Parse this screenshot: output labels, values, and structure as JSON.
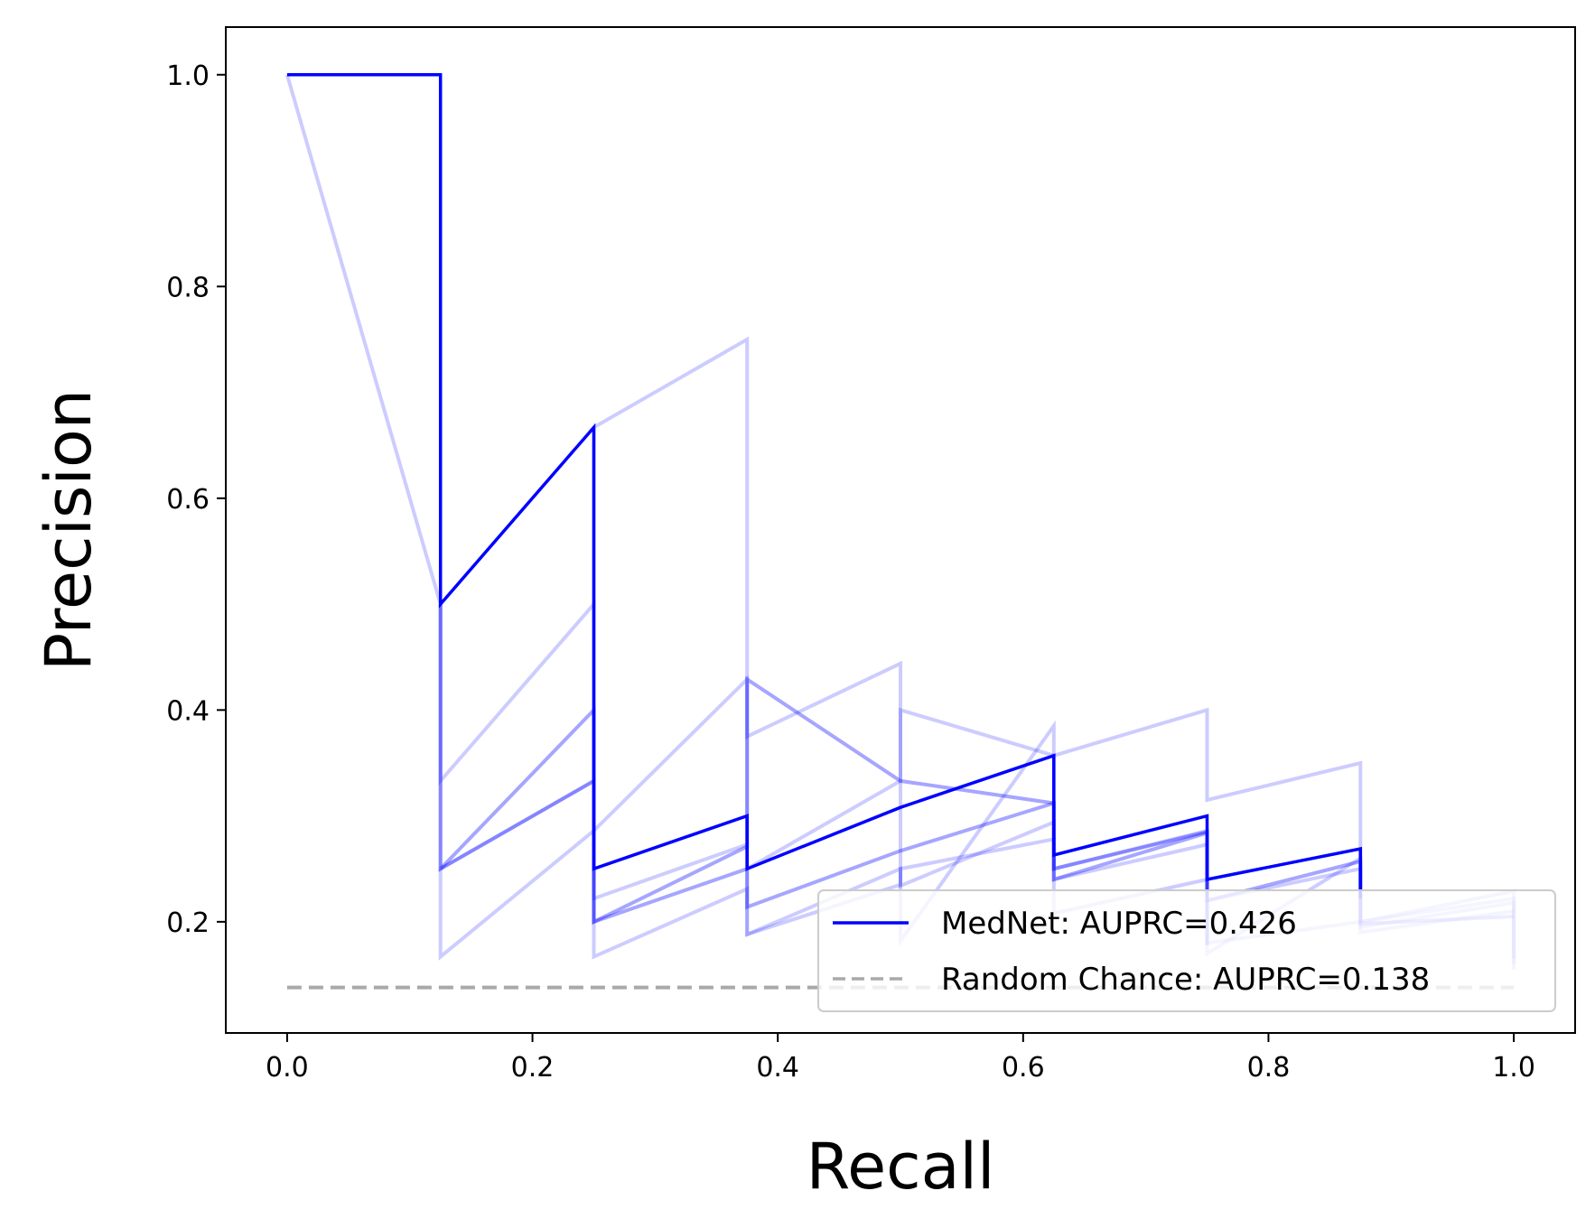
{
  "chart_data": {
    "type": "line",
    "title": "",
    "xlabel": "Recall",
    "ylabel": "Precision",
    "xlim": [
      -0.05,
      1.05
    ],
    "ylim": [
      0.095,
      1.045
    ],
    "xticks": [
      "0.0",
      "0.2",
      "0.4",
      "0.6",
      "0.8",
      "1.0"
    ],
    "yticks": [
      "0.2",
      "0.4",
      "0.6",
      "0.8",
      "1.0"
    ],
    "grid": false,
    "legend_position": "lower-right",
    "colors": {
      "main": "#0000ff",
      "faint": "#0000ff",
      "random": "#a9a9a9"
    },
    "series": [
      {
        "name": "MedNet: AUPRC=0.426",
        "style": "main",
        "x": [
          0.0,
          0.125,
          0.125,
          0.25,
          0.25,
          0.375,
          0.375,
          0.5,
          0.625,
          0.625,
          0.75,
          0.75,
          0.875,
          0.875
        ],
        "y": [
          1.0,
          1.0,
          0.5,
          0.667,
          0.25,
          0.3,
          0.25,
          0.308,
          0.357,
          0.263,
          0.3,
          0.24,
          0.269,
          0.222
        ]
      },
      {
        "name": "Random Chance: AUPRC=0.138",
        "style": "random",
        "x": [
          0.0,
          1.0
        ],
        "y": [
          0.138,
          0.138
        ]
      }
    ],
    "background_curves": [
      {
        "opacity": 0.2,
        "x": [
          0.0,
          0.125,
          0.125,
          0.25,
          0.25,
          0.375,
          0.375,
          0.5,
          0.5,
          0.625,
          0.625,
          0.75,
          0.75,
          0.875,
          0.875,
          1.0,
          1.0
        ],
        "y": [
          1.0,
          0.5,
          0.333,
          0.5,
          0.286,
          0.429,
          0.375,
          0.444,
          0.182,
          0.385,
          0.357,
          0.4,
          0.315,
          0.35,
          0.2,
          0.229,
          0.165
        ]
      },
      {
        "opacity": 0.2,
        "x": [
          0.125,
          0.125,
          0.25,
          0.25,
          0.375,
          0.375,
          0.5,
          0.5,
          0.625,
          0.625,
          0.75,
          0.75,
          0.875,
          0.875,
          1.0,
          1.0
        ],
        "y": [
          0.5,
          0.25,
          0.333,
          0.667,
          0.75,
          0.25,
          0.333,
          0.4,
          0.357,
          0.25,
          0.286,
          0.22,
          0.25,
          0.2,
          0.222,
          0.16
        ]
      },
      {
        "opacity": 0.2,
        "x": [
          0.125,
          0.125,
          0.25,
          0.25,
          0.375,
          0.375,
          0.5,
          0.5,
          0.625,
          0.625,
          0.75,
          0.75,
          0.875,
          0.875,
          1.0,
          1.0
        ],
        "y": [
          0.25,
          0.167,
          0.286,
          0.167,
          0.231,
          0.188,
          0.25,
          0.234,
          0.294,
          0.208,
          0.24,
          0.17,
          0.26,
          0.195,
          0.218,
          0.155
        ]
      },
      {
        "opacity": 0.2,
        "x": [
          0.25,
          0.25,
          0.375,
          0.375,
          0.5,
          0.5,
          0.625,
          0.625,
          0.75,
          0.75,
          0.875,
          0.875,
          1.0
        ],
        "y": [
          0.4,
          0.222,
          0.273,
          0.188,
          0.235,
          0.25,
          0.278,
          0.24,
          0.273,
          0.18,
          0.2,
          0.19,
          0.21
        ]
      },
      {
        "opacity": 0.35,
        "x": [
          0.125,
          0.25,
          0.25,
          0.375,
          0.375,
          0.5,
          0.625,
          0.625,
          0.75,
          0.75,
          0.875,
          0.875,
          1.0
        ],
        "y": [
          0.25,
          0.4,
          0.2,
          0.271,
          0.429,
          0.333,
          0.312,
          0.24,
          0.284,
          0.22,
          0.257,
          0.198,
          0.205
        ]
      },
      {
        "opacity": 0.35,
        "x": [
          0.125,
          0.125,
          0.25,
          0.25,
          0.375,
          0.375,
          0.5,
          0.5,
          0.625,
          0.625,
          0.75,
          0.75
        ],
        "y": [
          0.5,
          0.25,
          0.333,
          0.2,
          0.25,
          0.214,
          0.267,
          0.267,
          0.312,
          0.25,
          0.285,
          0.178
        ]
      }
    ]
  }
}
